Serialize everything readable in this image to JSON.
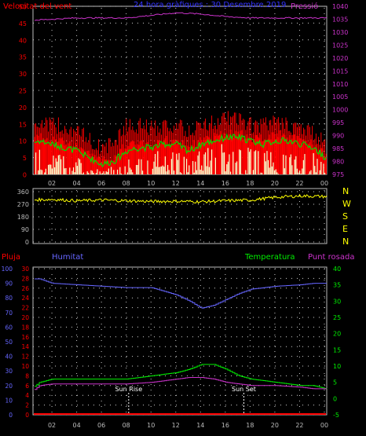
{
  "colors": {
    "background": "#000000",
    "frame": "#bbbbbb",
    "grid": "#cfcfcf",
    "wind_avg": "#ff0000",
    "wind_gust": "#ff0000",
    "wind_mean": "#00dd00",
    "wind_min": "#ffffcc",
    "pressure": "#cc33cc",
    "direction": "#ffff00",
    "rain": "#ff0000",
    "humidity": "#6666ff",
    "temperature": "#00ee00",
    "dewpoint": "#cc33cc",
    "sun_marker": "#ffffff"
  },
  "chart_data": [
    {
      "type": "line",
      "title": "24 hora gràfiques : 30 Desembre 2019",
      "left_label": "Velocitat del vent",
      "right_label": "Pressió",
      "x_ticks": [
        "02",
        "04",
        "06",
        "08",
        "10",
        "12",
        "14",
        "16",
        "18",
        "20",
        "22",
        "00"
      ],
      "left_ticks": [
        "0",
        "5",
        "10",
        "15",
        "20",
        "25",
        "30",
        "35",
        "40",
        "45",
        "50"
      ],
      "right_ticks": [
        "975",
        "980",
        "985",
        "990",
        "995",
        "1000",
        "1005",
        "1010",
        "1015",
        "1020",
        "1025",
        "1030",
        "1035",
        "1040"
      ],
      "ylim_left": [
        0,
        50
      ],
      "ylim_right": [
        975,
        1040
      ],
      "grid": true,
      "series": [
        {
          "key": "gust",
          "axis": "left",
          "hours": [
            0,
            1,
            2,
            3,
            4,
            5,
            6,
            7,
            8,
            9,
            10,
            11,
            12,
            13,
            14,
            15,
            16,
            17,
            18,
            19,
            20,
            21,
            22,
            23,
            24
          ],
          "values": [
            14,
            15,
            14,
            14,
            12,
            10,
            7,
            9,
            14,
            14,
            13,
            14,
            14,
            12,
            14,
            15,
            16,
            16,
            14,
            14,
            15,
            14,
            13,
            12,
            8
          ]
        },
        {
          "key": "avg",
          "axis": "left",
          "hours": [
            0,
            1,
            2,
            3,
            4,
            5,
            6,
            7,
            8,
            9,
            10,
            11,
            12,
            13,
            14,
            15,
            16,
            17,
            18,
            19,
            20,
            21,
            22,
            23,
            24
          ],
          "values": [
            11,
            11,
            10,
            10,
            8,
            6,
            4,
            5,
            9,
            9,
            9,
            10,
            10,
            8,
            10,
            11,
            12,
            12,
            11,
            11,
            12,
            11,
            10,
            9,
            6
          ]
        },
        {
          "key": "mean",
          "axis": "left",
          "hours": [
            0,
            1,
            2,
            3,
            4,
            5,
            6,
            7,
            8,
            9,
            10,
            11,
            12,
            13,
            14,
            15,
            16,
            17,
            18,
            19,
            20,
            21,
            22,
            23,
            24
          ],
          "values": [
            9,
            10,
            9,
            8,
            7,
            5,
            3,
            4,
            7,
            8,
            8,
            9,
            9,
            7,
            9,
            10,
            11,
            11,
            10,
            9,
            10,
            10,
            9,
            8,
            5
          ]
        },
        {
          "key": "min",
          "axis": "left",
          "hours": [
            0,
            1,
            2,
            3,
            4,
            5,
            6,
            7,
            8,
            9,
            10,
            11,
            12,
            13,
            14,
            15,
            16,
            17,
            18,
            19,
            20,
            21,
            22,
            23,
            24
          ],
          "values": [
            5,
            6,
            5,
            5,
            4,
            2,
            1,
            2,
            4,
            5,
            5,
            6,
            6,
            4,
            6,
            7,
            7,
            7,
            6,
            6,
            7,
            6,
            5,
            5,
            2
          ]
        },
        {
          "key": "pressure",
          "axis": "right",
          "hours": [
            0,
            2,
            4,
            6,
            8,
            10,
            12,
            14,
            16,
            18,
            20,
            22,
            24
          ],
          "values": [
            1034.5,
            1035,
            1035.5,
            1035.5,
            1035.5,
            1036.5,
            1037.5,
            1037,
            1036,
            1035.5,
            1035.5,
            1035.5,
            1035.5
          ]
        }
      ]
    },
    {
      "type": "line",
      "title": "",
      "x_ticks": [
        "02",
        "04",
        "06",
        "08",
        "10",
        "12",
        "14",
        "16",
        "18",
        "20",
        "22",
        "00"
      ],
      "left_ticks": [
        "0",
        "90",
        "180",
        "270",
        "360"
      ],
      "right_ticks": [
        "N",
        "W",
        "S",
        "E",
        "N"
      ],
      "ylim": [
        0,
        360
      ],
      "grid": true,
      "series": [
        {
          "key": "direction",
          "hours": [
            0,
            2,
            4,
            6,
            8,
            10,
            12,
            14,
            16,
            18,
            20,
            22,
            24
          ],
          "values": [
            300,
            305,
            295,
            300,
            295,
            290,
            292,
            288,
            295,
            300,
            320,
            330,
            325
          ]
        }
      ]
    },
    {
      "type": "line",
      "title": "",
      "labels": {
        "rain": "Pluja",
        "humidity": "Humitat",
        "temperature": "Temperatura",
        "dewpoint": "Punt rosada"
      },
      "x_ticks": [
        "02",
        "04",
        "06",
        "08",
        "10",
        "12",
        "14",
        "16",
        "18",
        "20",
        "22",
        "00"
      ],
      "rain_ticks": [
        "0",
        "10",
        "20",
        "30",
        "40",
        "50",
        "60",
        "70",
        "80",
        "90",
        "100"
      ],
      "humidity_ticks": [
        "0",
        "2",
        "4",
        "6",
        "8",
        "10",
        "12",
        "14",
        "16",
        "18",
        "20",
        "22",
        "24",
        "26",
        "28",
        "30"
      ],
      "temp_ticks": [
        "-5",
        "0",
        "5",
        "10",
        "15",
        "20",
        "25",
        "30",
        "35",
        "40"
      ],
      "ylim_rain": [
        0,
        100
      ],
      "ylim_humidity": [
        0,
        30
      ],
      "ylim_temp": [
        -5,
        40
      ],
      "grid": true,
      "annotations": [
        {
          "text": "Sun Rise",
          "hour": 8.2
        },
        {
          "text": "Sun Set",
          "hour": 17.5
        }
      ],
      "series": [
        {
          "key": "rain",
          "axis": "rain",
          "hours": [
            0,
            24
          ],
          "values": [
            0,
            0
          ]
        },
        {
          "key": "humidity",
          "axis": "rain",
          "hours": [
            0,
            1,
            2,
            4,
            6,
            8,
            10,
            12,
            13,
            14,
            15,
            16,
            17,
            18,
            20,
            22,
            23,
            24
          ],
          "values": [
            93,
            93,
            90,
            89,
            88,
            87,
            87,
            82,
            78,
            73,
            75,
            79,
            83,
            86,
            88,
            89,
            90,
            90
          ]
        },
        {
          "key": "temperature",
          "axis": "temp",
          "hours": [
            0,
            1,
            2,
            4,
            6,
            8,
            10,
            12,
            13,
            14,
            15,
            16,
            17,
            18,
            20,
            22,
            23,
            24
          ],
          "values": [
            2,
            5,
            6,
            6,
            6,
            6,
            7,
            8,
            9,
            10.5,
            10.5,
            9,
            7,
            6,
            5,
            4,
            4,
            3
          ]
        },
        {
          "key": "dewpoint",
          "axis": "temp",
          "hours": [
            0,
            1,
            2,
            4,
            6,
            8,
            10,
            12,
            13,
            14,
            15,
            16,
            17,
            18,
            20,
            22,
            23,
            24
          ],
          "values": [
            1,
            4,
            4.5,
            4.5,
            4.5,
            4.5,
            5,
            6,
            6.5,
            6.5,
            6,
            5,
            4.5,
            4,
            4,
            3.5,
            3,
            3
          ]
        }
      ]
    }
  ]
}
